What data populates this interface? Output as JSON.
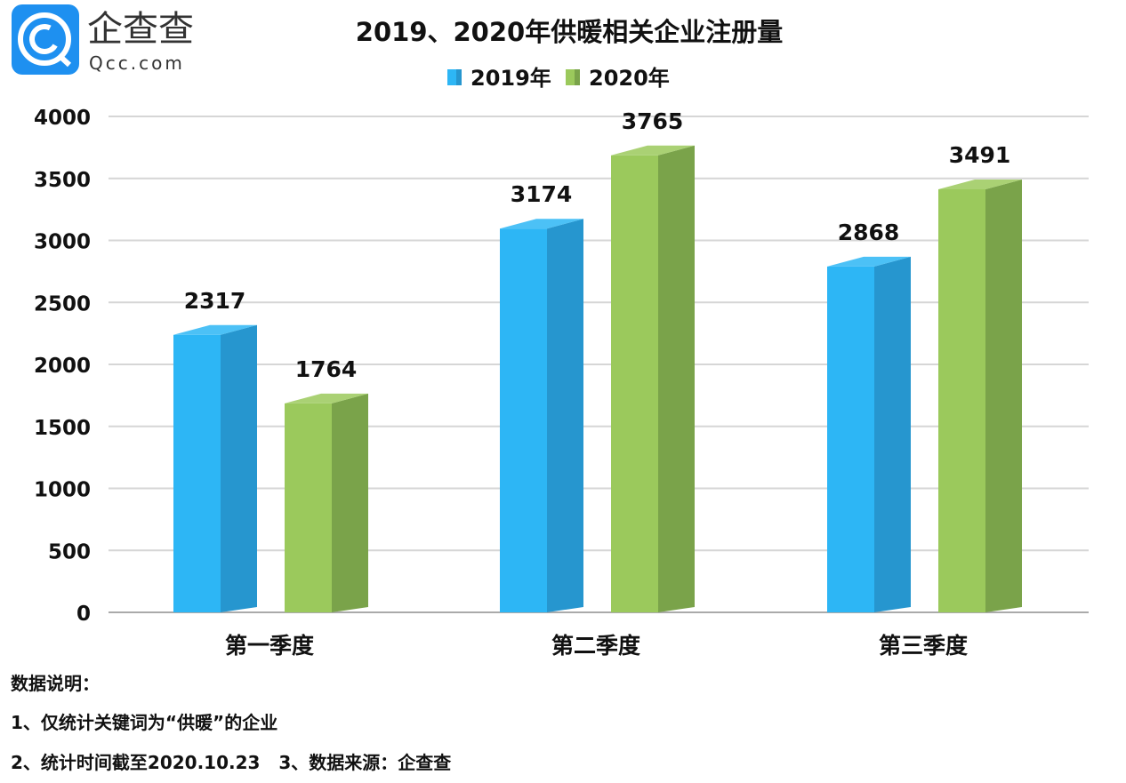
{
  "logo": {
    "cn": "企查查",
    "en": "Qcc.com",
    "color": "#1E90F0"
  },
  "chart_data": {
    "type": "bar",
    "style": "3d-column",
    "title": "2019、2020年供暖相关企业注册量",
    "categories": [
      "第一季度",
      "第二季度",
      "第三季度"
    ],
    "series": [
      {
        "name": "2019年",
        "values": [
          2317,
          3174,
          2868
        ],
        "color": "#2DB6F5",
        "side_color": "#2696CF"
      },
      {
        "name": "2020年",
        "values": [
          1764,
          3765,
          3491
        ],
        "color": "#9BC95C",
        "side_color": "#7AA34A"
      }
    ],
    "yticks": [
      0,
      500,
      1000,
      1500,
      2000,
      2500,
      3000,
      3500,
      4000
    ],
    "ylim": [
      0,
      4000
    ],
    "grid": true,
    "legend": "top-center"
  },
  "notes": {
    "heading": "数据说明：",
    "line1": "1、仅统计关键词为“供暖”的企业",
    "line2": "2、统计时间截至2020.10.23   3、数据来源：企查查"
  }
}
